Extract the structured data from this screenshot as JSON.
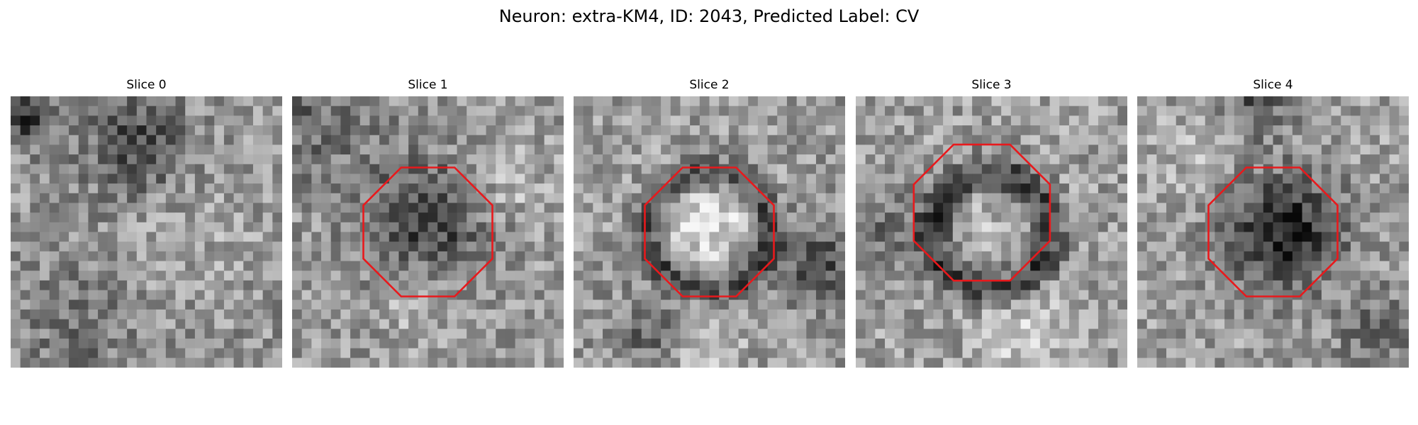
{
  "title": "Neuron: extra-KM4, ID: 2043, Predicted Label: CV",
  "panels": [
    {
      "label": "Slice 0"
    },
    {
      "label": "Slice 1"
    },
    {
      "label": "Slice 2"
    },
    {
      "label": "Slice 3"
    },
    {
      "label": "Slice 4"
    }
  ],
  "colors": {
    "octagon_outline": "#e8191c",
    "background": "#ffffff"
  }
}
